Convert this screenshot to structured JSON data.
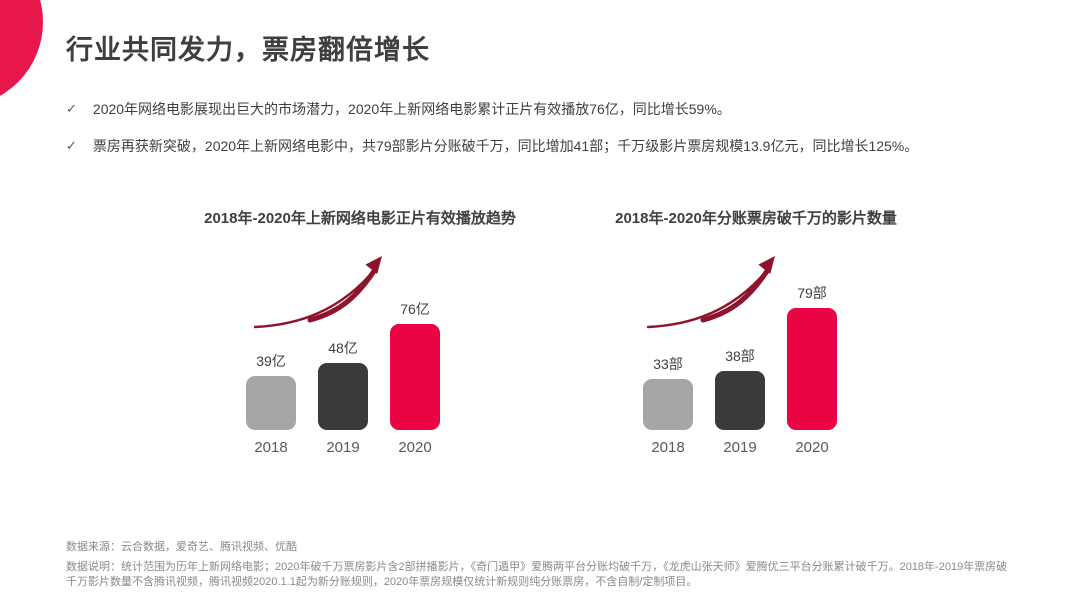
{
  "slide": {
    "title": "行业共同发力，票房翻倍增长",
    "check_glyph": "✓",
    "bullets": [
      {
        "text": "2020年网络电影展现出巨大的市场潜力，2020年上新网络电影累计正片有效播放76亿，同比增长59%。"
      },
      {
        "text": "票房再获新突破，2020年上新网络电影中，共79部影片分账破千万，同比增加41部；千万级影片票房规模13.9亿元，同比增长125%。"
      }
    ]
  },
  "chart_data": [
    {
      "type": "bar",
      "title": "2018年-2020年上新网络电影正片有效播放趋势",
      "categories": [
        "2018",
        "2019",
        "2020"
      ],
      "values": [
        39,
        48,
        76
      ],
      "labels": [
        "39亿",
        "48亿",
        "76亿"
      ],
      "unit": "亿",
      "bar_colors": [
        "#A6A6A6",
        "#3A3A3A",
        "#EA0443"
      ],
      "annotation": "upward-curved-growth-arrow",
      "grid": "off",
      "axes": "none"
    },
    {
      "type": "bar",
      "title": "2018年-2020年分账票房破千万的影片数量",
      "categories": [
        "2018",
        "2019",
        "2020"
      ],
      "values": [
        33,
        38,
        79
      ],
      "labels": [
        "33部",
        "38部",
        "79部"
      ],
      "unit": "部",
      "bar_colors": [
        "#A6A6A6",
        "#3A3A3A",
        "#EA0443"
      ],
      "annotation": "upward-curved-growth-arrow",
      "grid": "off",
      "axes": "none"
    }
  ],
  "footer": {
    "source": "数据来源：云合数据，爱奇艺、腾讯视频、优酷",
    "note": "数据说明：统计范围为历年上新网络电影；2020年破千万票房影片含2部拼播影片，《奇门遁甲》爱腾两平台分账均破千万，《龙虎山张天师》爱腾优三平台分账累计破千万。2018年-2019年票房破千万影片数量不含腾讯视频，腾讯视频2020.1.1起为新分账规则，2020年票房规模仅统计新规则纯分账票房，不含自制/定制项目。"
  },
  "colors": {
    "brand_red": "#E8174B",
    "bar_red": "#EA0443",
    "bar_dark": "#3A3A3A",
    "bar_gray": "#A6A6A6",
    "arrow_maroon": "#8E132D",
    "text_dark": "#404040",
    "footer_gray": "#8A8A8A"
  }
}
